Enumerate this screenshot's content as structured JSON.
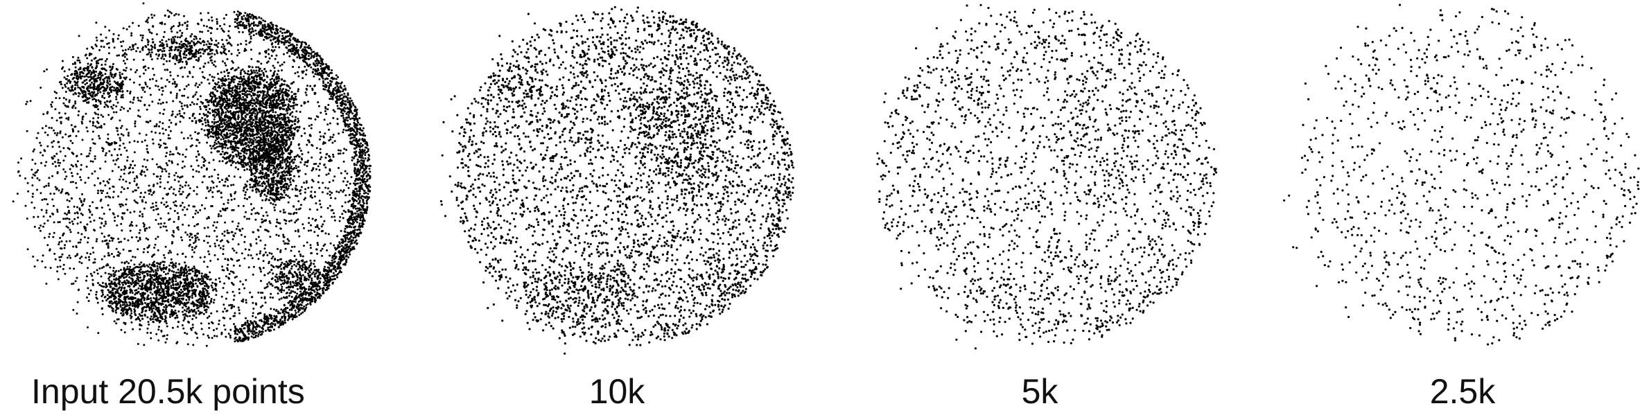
{
  "figure": {
    "panels": [
      {
        "caption": "Input 20.5k points",
        "density": 1.0
      },
      {
        "caption": "10k",
        "density": 0.49
      },
      {
        "caption": "5k",
        "density": 0.24
      },
      {
        "caption": "2.5k",
        "density": 0.12
      }
    ],
    "point_color": "#000000",
    "background": "#ffffff"
  }
}
